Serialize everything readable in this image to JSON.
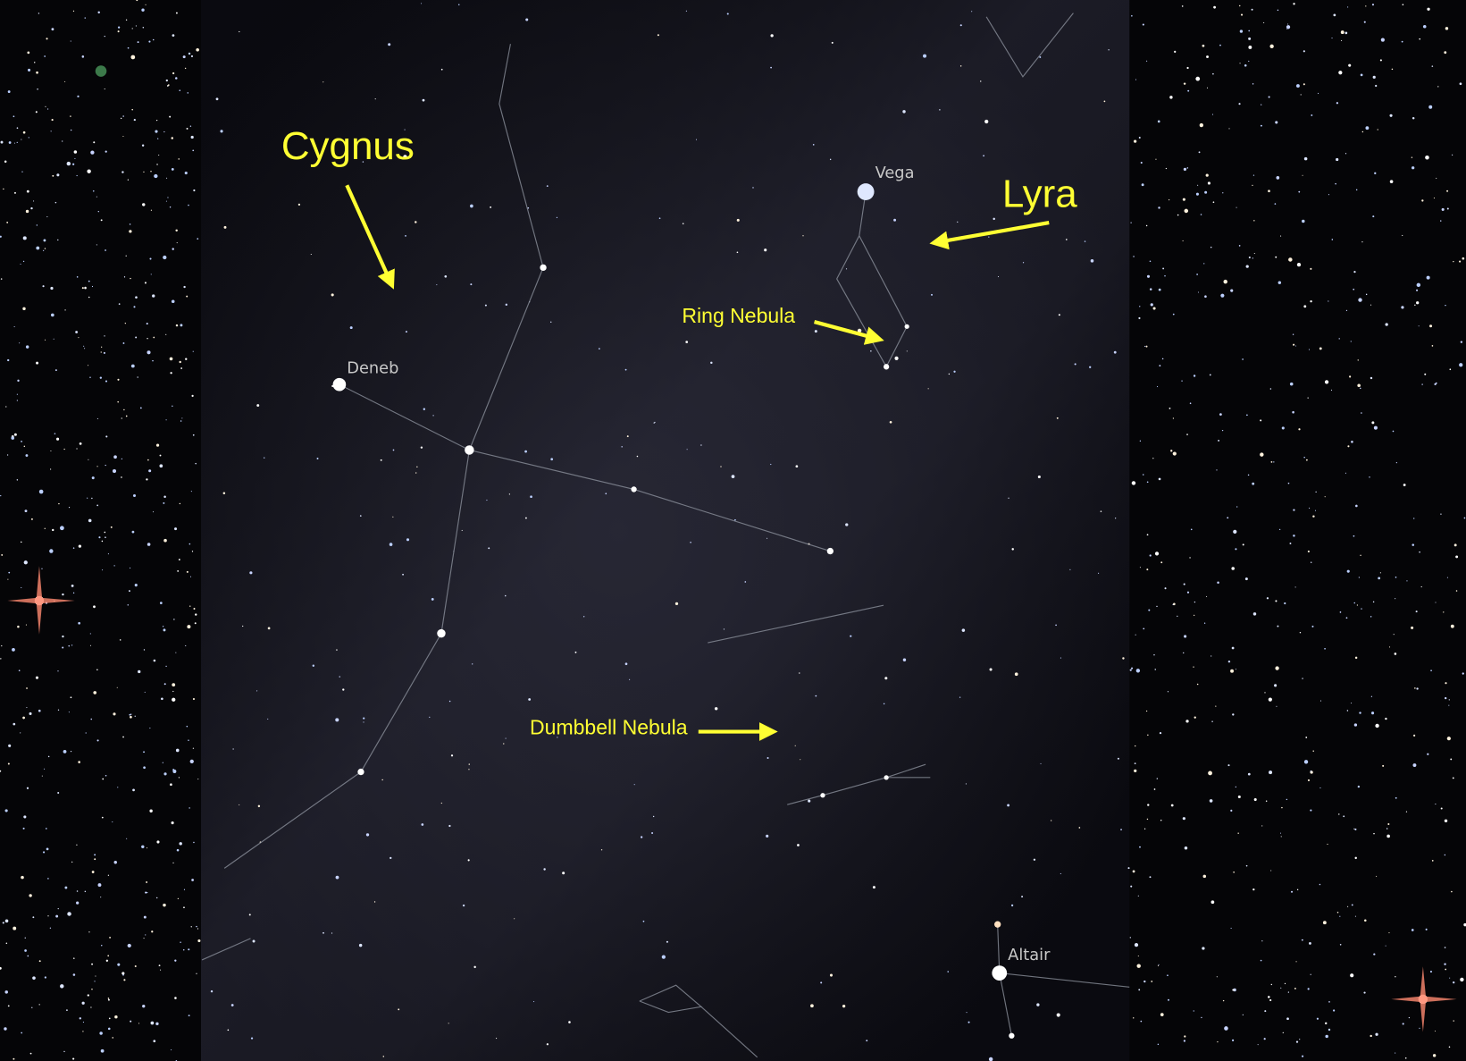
{
  "annotations": [
    "Cygnus",
    "Lyra",
    "Ring Nebula",
    "Dumbbell Nebula"
  ],
  "star_labels": [
    "Deneb",
    "Vega",
    "Altair"
  ]
}
